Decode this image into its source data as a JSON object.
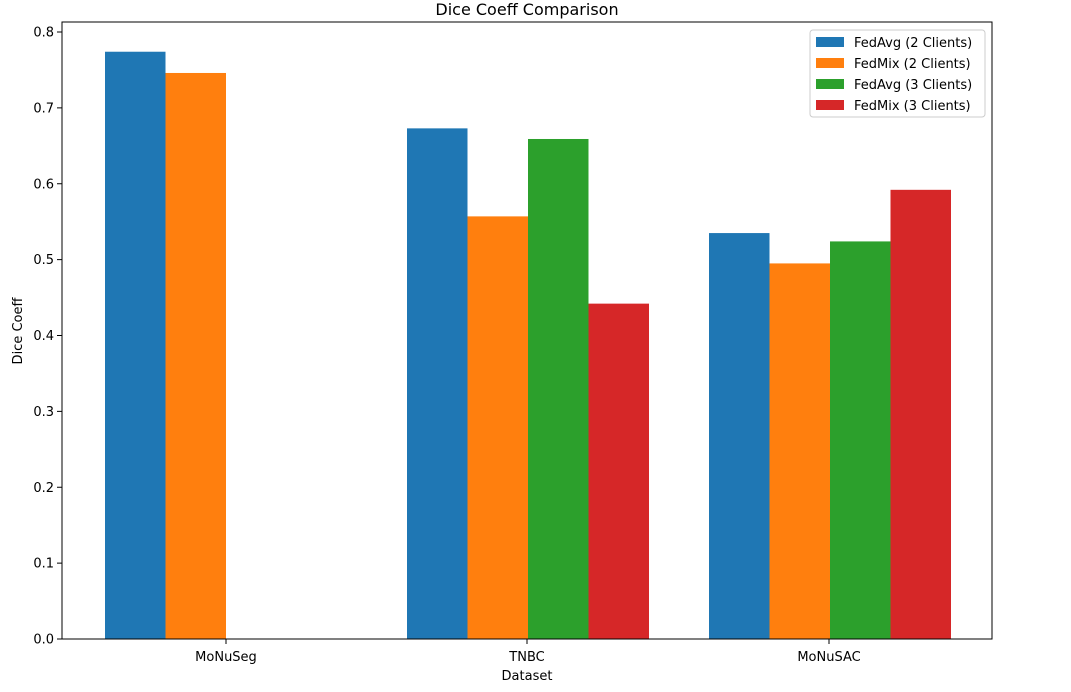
{
  "chart_data": {
    "type": "bar",
    "title": "Dice Coeff Comparison",
    "xlabel": "Dataset",
    "ylabel": "Dice Coeff",
    "categories": [
      "MoNuSeg",
      "TNBC",
      "MoNuSAC"
    ],
    "series": [
      {
        "name": "FedAvg (2 Clients)",
        "color": "#1f77b4",
        "values": [
          0.774,
          0.673,
          0.535
        ]
      },
      {
        "name": "FedMix (2 Clients)",
        "color": "#ff7f0e",
        "values": [
          0.746,
          0.557,
          0.495
        ]
      },
      {
        "name": "FedAvg (3 Clients)",
        "color": "#2ca02c",
        "values": [
          0,
          0.659,
          0.524
        ]
      },
      {
        "name": "FedMix (3 Clients)",
        "color": "#d62728",
        "values": [
          0,
          0.442,
          0.592
        ]
      }
    ],
    "ylim": [
      0,
      0.8
    ],
    "yticks": [
      "0.0",
      "0.1",
      "0.2",
      "0.3",
      "0.4",
      "0.5",
      "0.6",
      "0.7",
      "0.8"
    ],
    "grid": false,
    "legend_position": "top-right"
  }
}
